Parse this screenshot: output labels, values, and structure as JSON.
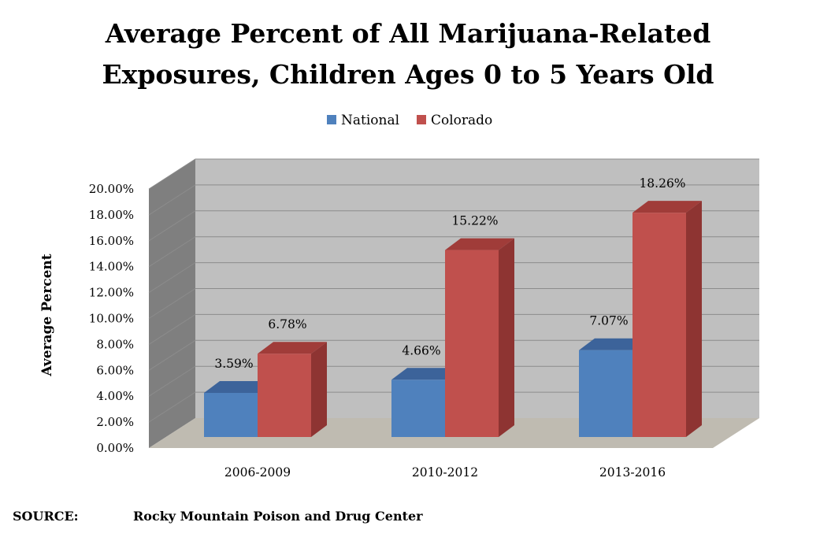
{
  "chart_data": {
    "type": "bar",
    "style": "3d-clustered-column",
    "title_lines": [
      "Average Percent of All Marijuana-Related",
      "Exposures, Children Ages 0 to 5 Years Old"
    ],
    "categories": [
      "2006-2009",
      "2010-2012",
      "2013-2016"
    ],
    "series": [
      {
        "name": "National",
        "values": [
          3.59,
          4.66,
          7.07
        ],
        "labels": [
          "3.59%",
          "4.66%",
          "7.07%"
        ],
        "color": "#4F81BD"
      },
      {
        "name": "Colorado",
        "values": [
          6.78,
          15.22,
          18.26
        ],
        "labels": [
          "6.78%",
          "15.22%",
          "18.26%"
        ],
        "color": "#C0504D"
      }
    ],
    "xlabel": "",
    "ylabel": "Average Percent",
    "ylim": [
      0,
      20
    ],
    "ytick_values": [
      0,
      2,
      4,
      6,
      8,
      10,
      12,
      14,
      16,
      18,
      20
    ],
    "ytick_labels": [
      "0.00%",
      "2.00%",
      "4.00%",
      "6.00%",
      "8.00%",
      "10.00%",
      "12.00%",
      "14.00%",
      "16.00%",
      "18.00%",
      "20.00%"
    ],
    "grid": true,
    "legend_position": "top-center"
  },
  "source": {
    "label": "SOURCE:",
    "text": "Rocky Mountain Poison and Drug Center"
  },
  "colors": {
    "back_wall": "#BFBFBF",
    "side_wall": "#7F7F7F",
    "floor": "#BFBBB1",
    "gridline": "#8C8C8C"
  }
}
